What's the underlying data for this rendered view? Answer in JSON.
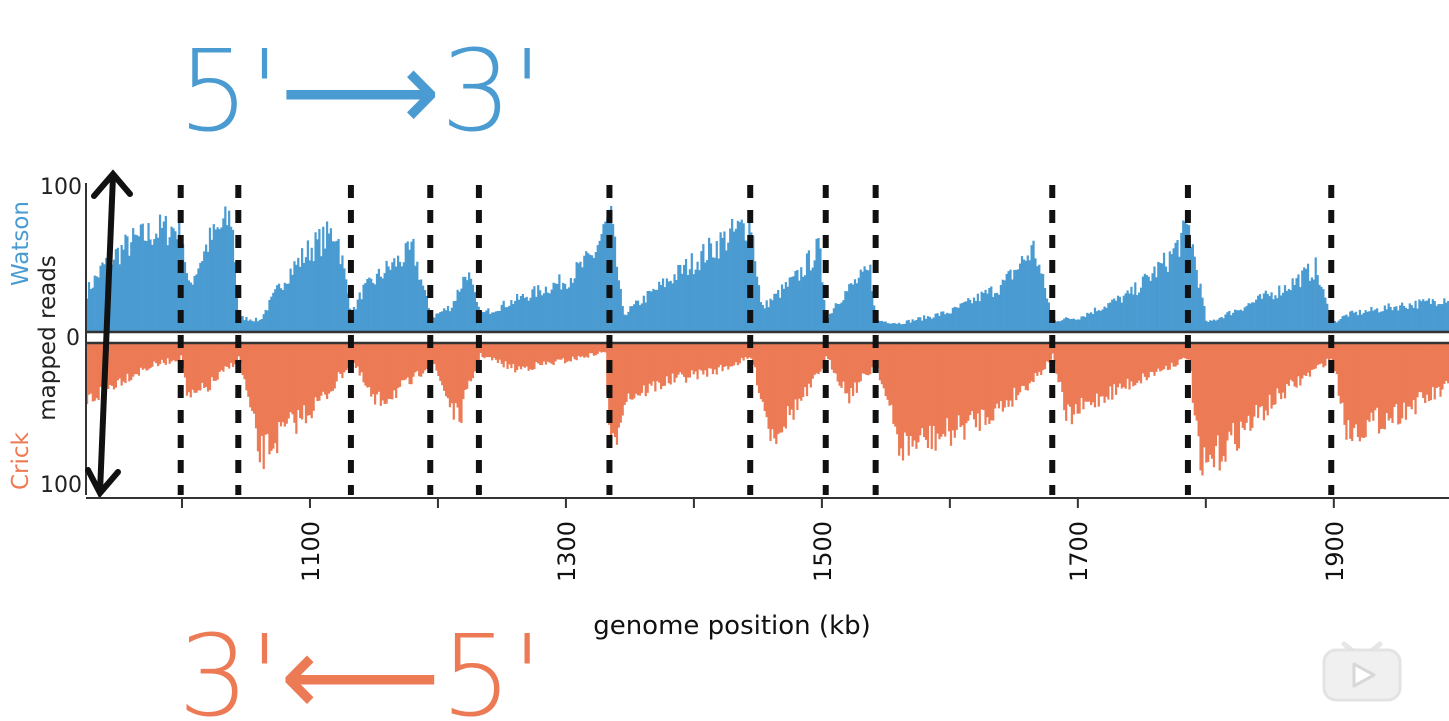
{
  "annotations": {
    "top_label": "5'⟶3'",
    "bottom_label": "3'⟵5'",
    "watson_color": "#4a9bd1",
    "crick_color": "#ec7a55"
  },
  "chart_data": {
    "type": "bar",
    "title": "",
    "xlabel": "genome position (kb)",
    "ylabel": "mapped reads",
    "ylabel_top": "Watson",
    "ylabel_bottom": "Crick",
    "ylim": [
      -100,
      100
    ],
    "xlim": [
      925,
      1990
    ],
    "x_ticks": [
      1000,
      1100,
      1200,
      1300,
      1400,
      1500,
      1600,
      1700,
      1800,
      1900
    ],
    "x_tick_labels": [
      "1100",
      "1300",
      "1500",
      "1700",
      "1900"
    ],
    "x_tick_label_values": [
      1100,
      1300,
      1500,
      1700,
      1900
    ],
    "y_tick_labels": [
      "100",
      "0",
      "100"
    ],
    "origin_boundaries_kb": [
      999,
      1044,
      1132,
      1194,
      1232,
      1334,
      1444,
      1503,
      1542,
      1680,
      1786,
      1898
    ],
    "series": [
      {
        "name": "Watson",
        "color": "#4a9bd1",
        "x": [
          925,
          940,
          960,
          980,
          999,
          1004,
          1020,
          1038,
          1044,
          1060,
          1080,
          1100,
          1120,
          1132,
          1140,
          1160,
          1180,
          1194,
          1210,
          1222,
          1232,
          1260,
          1300,
          1320,
          1334,
          1344,
          1380,
          1420,
          1444,
          1452,
          1480,
          1497,
          1503,
          1510,
          1525,
          1537,
          1542,
          1560,
          1600,
          1640,
          1665,
          1680,
          1700,
          1740,
          1770,
          1786,
          1800,
          1830,
          1860,
          1885,
          1898,
          1910,
          1950,
          1970,
          1990
        ],
        "values": [
          28,
          48,
          62,
          70,
          72,
          30,
          62,
          80,
          10,
          8,
          38,
          58,
          70,
          12,
          28,
          44,
          56,
          10,
          18,
          42,
          12,
          22,
          36,
          52,
          80,
          12,
          36,
          62,
          76,
          16,
          38,
          58,
          8,
          20,
          34,
          42,
          8,
          6,
          14,
          32,
          58,
          8,
          10,
          26,
          50,
          72,
          6,
          18,
          30,
          44,
          6,
          12,
          18,
          20,
          24
        ]
      },
      {
        "name": "Crick",
        "color": "#ec7a55",
        "x": [
          925,
          950,
          975,
          999,
          1004,
          1020,
          1044,
          1060,
          1080,
          1110,
          1132,
          1150,
          1180,
          1194,
          1215,
          1232,
          1260,
          1300,
          1330,
          1334,
          1345,
          1380,
          1420,
          1444,
          1460,
          1490,
          1503,
          1520,
          1542,
          1560,
          1600,
          1640,
          1670,
          1680,
          1690,
          1720,
          1760,
          1786,
          1795,
          1820,
          1860,
          1898,
          1910,
          1950,
          1990
        ],
        "values": [
          -40,
          -26,
          -16,
          -10,
          -40,
          -30,
          -10,
          -78,
          -60,
          -38,
          -12,
          -42,
          -26,
          -12,
          -54,
          -8,
          -18,
          -12,
          -6,
          -80,
          -38,
          -26,
          -18,
          -10,
          -64,
          -32,
          -10,
          -36,
          -14,
          -72,
          -62,
          -44,
          -20,
          -8,
          -52,
          -36,
          -20,
          -10,
          -90,
          -66,
          -34,
          -10,
          -62,
          -48,
          -30
        ]
      }
    ]
  }
}
